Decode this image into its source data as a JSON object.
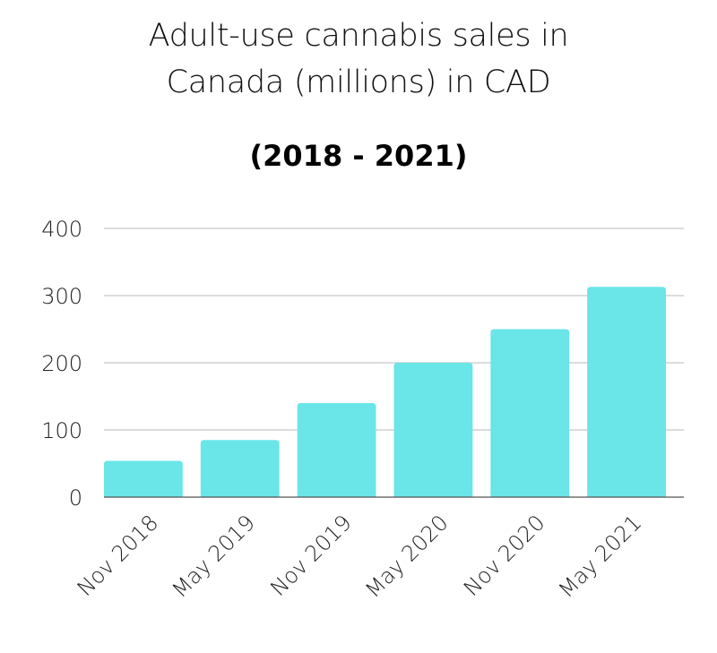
{
  "chart_data": {
    "type": "bar",
    "title_lines": [
      "Adult-use cannabis sales in",
      "Canada (millions) in CAD"
    ],
    "subtitle": "(2018 - 2021)",
    "categories": [
      "Nov 2018",
      "May 2019",
      "Nov 2019",
      "May 2020",
      "Nov 2020",
      "May 2021"
    ],
    "values": [
      54,
      85,
      140,
      200,
      250,
      313
    ],
    "ylim": [
      0,
      400
    ],
    "yticks": [
      "0",
      "100",
      "200",
      "300",
      "400"
    ],
    "xlabel": "",
    "ylabel": "",
    "grid": true,
    "bar_color": "#6ae5e8",
    "grid_color": "#c8c8c8",
    "axis_color": "#555555"
  }
}
